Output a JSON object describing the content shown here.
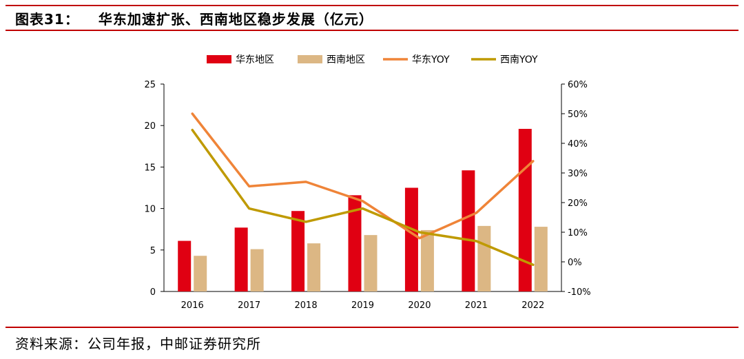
{
  "header": {
    "figure_label": "图表31：",
    "title": "华东加速扩张、西南地区稳步发展（亿元）"
  },
  "footer": {
    "source": "资料来源：公司年报，中邮证券研究所"
  },
  "colors": {
    "east_bar": "#e00012",
    "southwest_bar": "#dcb784",
    "east_line": "#ef8438",
    "southwest_line": "#bf9a00",
    "rule": "#c00000"
  },
  "chart_data": {
    "type": "bar",
    "title": "华东加速扩张、西南地区稳步发展（亿元）",
    "categories": [
      "2016",
      "2017",
      "2018",
      "2019",
      "2020",
      "2021",
      "2022"
    ],
    "series": [
      {
        "name": "华东地区",
        "kind": "bar",
        "axis": "left",
        "values": [
          6.1,
          7.7,
          9.7,
          11.6,
          12.5,
          14.6,
          19.6
        ]
      },
      {
        "name": "西南地区",
        "kind": "bar",
        "axis": "left",
        "values": [
          4.3,
          5.1,
          5.8,
          6.8,
          7.4,
          7.9,
          7.8
        ]
      },
      {
        "name": "华东YOY",
        "kind": "line",
        "axis": "right",
        "values": [
          50,
          25.5,
          27,
          20.5,
          8,
          16.5,
          34
        ]
      },
      {
        "name": "西南YOY",
        "kind": "line",
        "axis": "right",
        "values": [
          44.5,
          18,
          13.5,
          18,
          10,
          7,
          -1
        ]
      }
    ],
    "ylim": [
      0,
      25
    ],
    "yticks": [
      0,
      5,
      10,
      15,
      20,
      25
    ],
    "y2lim": [
      -10,
      60
    ],
    "y2ticks": [
      "-10%",
      "0%",
      "10%",
      "20%",
      "30%",
      "40%",
      "50%",
      "60%"
    ],
    "legend": "top-center",
    "xlabel": "",
    "ylabel": ""
  }
}
